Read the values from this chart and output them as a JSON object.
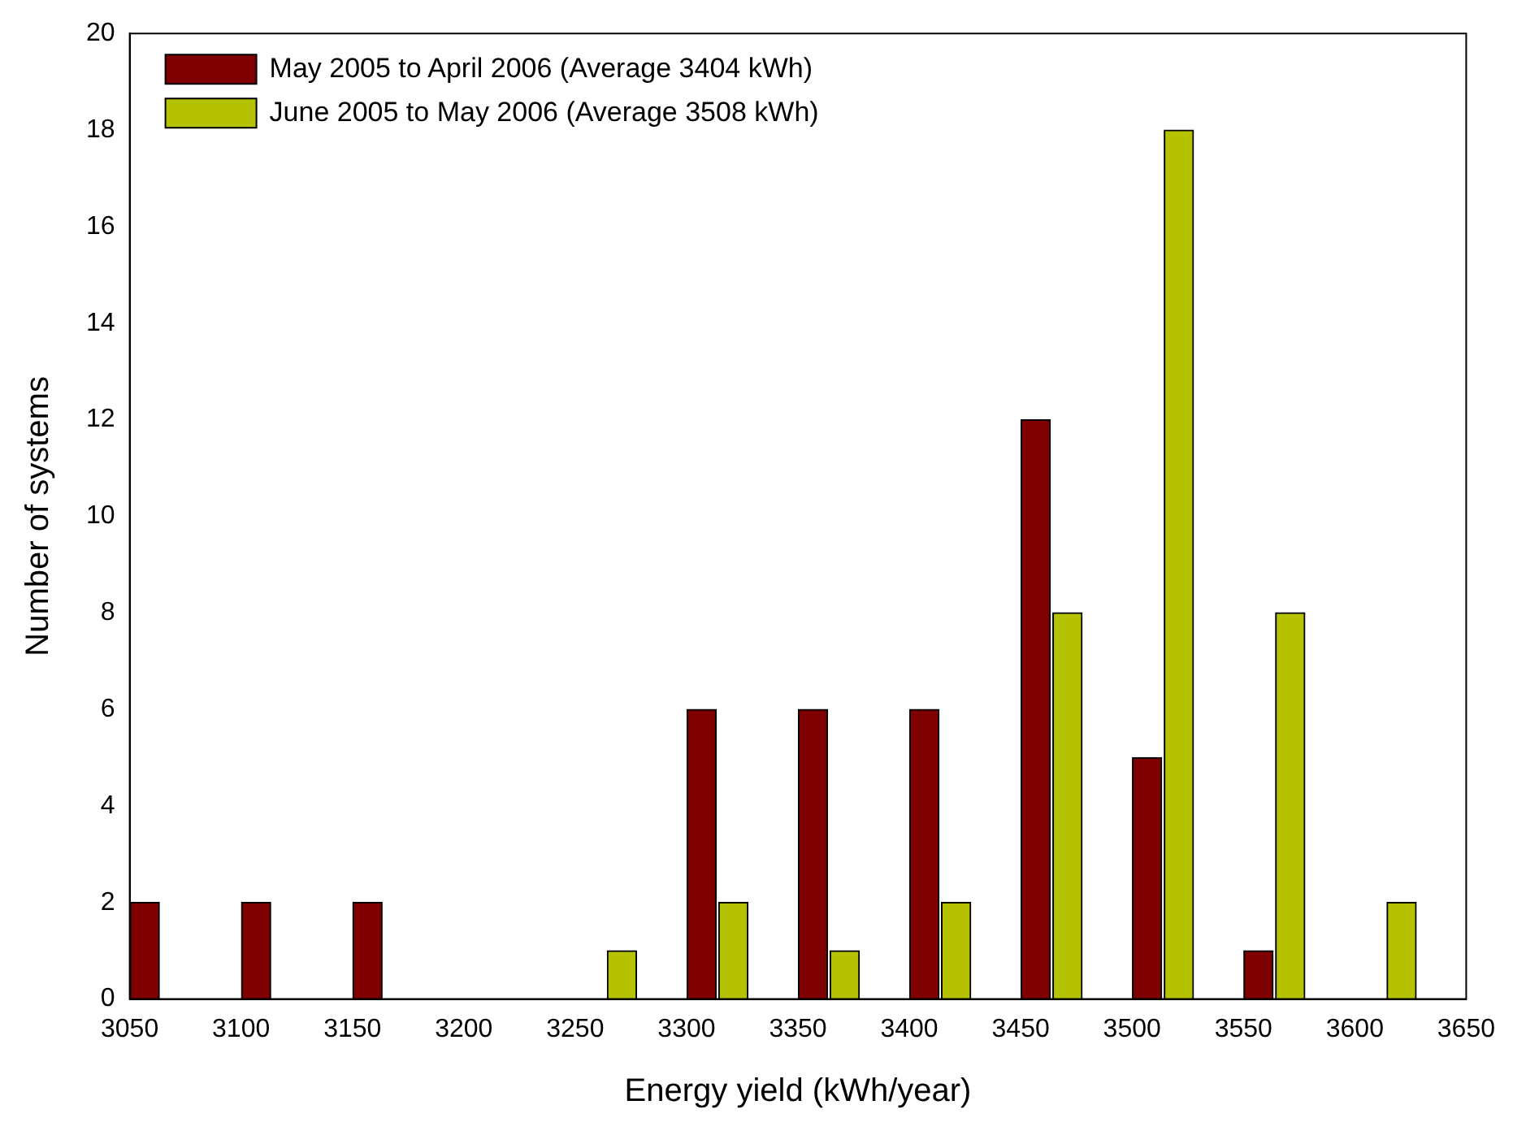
{
  "chart_data": {
    "type": "histogram",
    "xlabel": "Energy yield (kWh/year)",
    "ylabel": "Number of systems",
    "bins": [
      3050,
      3100,
      3150,
      3200,
      3250,
      3300,
      3350,
      3400,
      3450,
      3500,
      3550,
      3600,
      3650
    ],
    "series": [
      {
        "name": "May 2005 to April 2006 (Average 3404 kWh)",
        "color": "#7f0000",
        "values": [
          2,
          2,
          2,
          0,
          0,
          6,
          6,
          6,
          12,
          5,
          1,
          0
        ]
      },
      {
        "name": "June 2005 to May 2006 (Average 3508 kWh)",
        "color": "#b5c200",
        "values": [
          0,
          0,
          0,
          0,
          1,
          2,
          1,
          2,
          8,
          18,
          8,
          2
        ]
      }
    ],
    "xlim": [
      3050,
      3650
    ],
    "xticks": [
      3050,
      3100,
      3150,
      3200,
      3250,
      3300,
      3350,
      3400,
      3450,
      3500,
      3550,
      3600,
      3650
    ],
    "ylim": [
      0,
      20
    ],
    "yticks": [
      0,
      2,
      4,
      6,
      8,
      10,
      12,
      14,
      16,
      18,
      20
    ],
    "grid": false,
    "legend": "top left"
  }
}
